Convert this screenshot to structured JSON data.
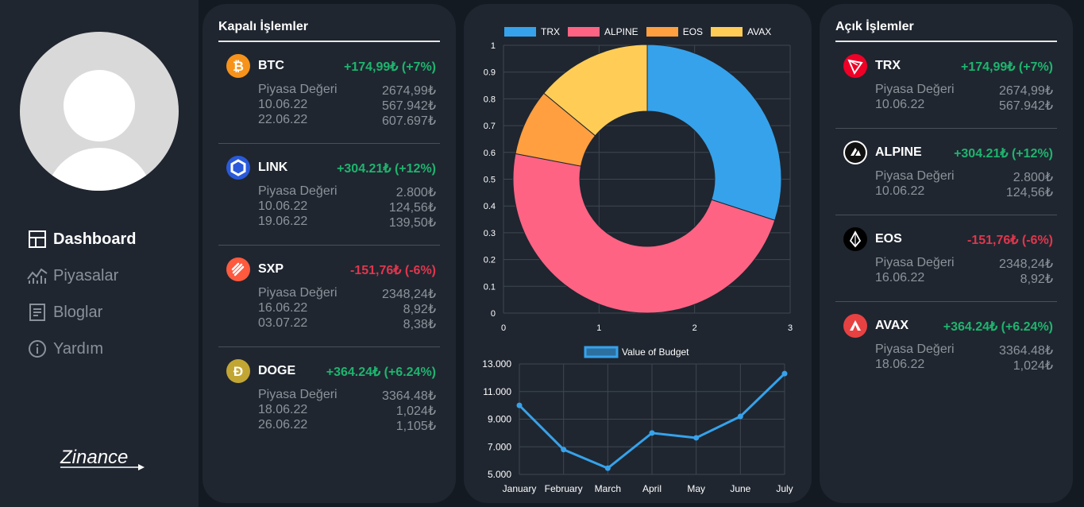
{
  "nav": {
    "items": [
      {
        "label": "Dashboard",
        "active": true
      },
      {
        "label": "Piyasalar",
        "active": false
      },
      {
        "label": "Bloglar",
        "active": false
      },
      {
        "label": "Yardım",
        "active": false
      }
    ],
    "logo_text": "Zinance"
  },
  "closed": {
    "title": "Kapalı İşlemler",
    "items": [
      {
        "symbol": "BTC",
        "change": "+174,99₺ (+7%)",
        "trend": "up",
        "icon": "bitcoin-icon",
        "color": "#f7931a",
        "rows": [
          [
            "Piyasa Değeri",
            "2674,99₺"
          ],
          [
            "10.06.22",
            "567.942₺"
          ],
          [
            "22.06.22",
            "607.697₺"
          ]
        ]
      },
      {
        "symbol": "LINK",
        "change": "+304.21₺ (+12%)",
        "trend": "up",
        "icon": "chainlink-icon",
        "color": "#2a5ada",
        "rows": [
          [
            "Piyasa Değeri",
            "2.800₺"
          ],
          [
            "10.06.22",
            "124,56₺"
          ],
          [
            "19.06.22",
            "139,50₺"
          ]
        ]
      },
      {
        "symbol": "SXP",
        "change": "-151,76₺ (-6%)",
        "trend": "down",
        "icon": "swipe-icon",
        "color": "#fd5a3e",
        "rows": [
          [
            "Piyasa Değeri",
            "2348,24₺"
          ],
          [
            "16.06.22",
            "8,92₺"
          ],
          [
            "03.07.22",
            "8,38₺"
          ]
        ]
      },
      {
        "symbol": "DOGE",
        "change": "+364.24₺ (+6.24%)",
        "trend": "up",
        "icon": "dogecoin-icon",
        "color": "#c2a633",
        "rows": [
          [
            "Piyasa Değeri",
            "3364.48₺"
          ],
          [
            "18.06.22",
            "1,024₺"
          ],
          [
            "26.06.22",
            "1,105₺"
          ]
        ]
      }
    ]
  },
  "open": {
    "title": "Açık İşlemler",
    "items": [
      {
        "symbol": "TRX",
        "change": "+174,99₺ (+7%)",
        "trend": "up",
        "icon": "tron-icon",
        "color": "#ef0027",
        "rows": [
          [
            "Piyasa Değeri",
            "2674,99₺"
          ],
          [
            "10.06.22",
            "567.942₺"
          ]
        ]
      },
      {
        "symbol": "ALPINE",
        "change": "+304.21₺ (+12%)",
        "trend": "up",
        "icon": "alpine-icon",
        "color": "#ffffff",
        "rows": [
          [
            "Piyasa Değeri",
            "2.800₺"
          ],
          [
            "10.06.22",
            "124,56₺"
          ]
        ]
      },
      {
        "symbol": "EOS",
        "change": "-151,76₺ (-6%)",
        "trend": "down",
        "icon": "eos-icon",
        "color": "#000000",
        "rows": [
          [
            "Piyasa Değeri",
            "2348,24₺"
          ],
          [
            "16.06.22",
            "8,92₺"
          ]
        ]
      },
      {
        "symbol": "AVAX",
        "change": "+364.24₺ (+6.24%)",
        "trend": "up",
        "icon": "avalanche-icon",
        "color": "#e84142",
        "rows": [
          [
            "Piyasa Değeri",
            "3364.48₺"
          ],
          [
            "18.06.22",
            "1,024₺"
          ]
        ]
      }
    ]
  },
  "chart_data": [
    {
      "type": "pie",
      "variant": "doughnut",
      "labels": [
        "TRX",
        "ALPINE",
        "EOS",
        "AVAX"
      ],
      "values": [
        30,
        48,
        8,
        14
      ],
      "colors": [
        "#36a2eb",
        "#ff6384",
        "#ff9f40",
        "#ffcd56"
      ],
      "legend_position": "top",
      "x_ticks": [
        "0",
        "1",
        "2",
        "3"
      ],
      "y_ticks": [
        "0",
        "0.1",
        "0.2",
        "0.3",
        "0.4",
        "0.5",
        "0.6",
        "0.7",
        "0.8",
        "0.9",
        "1"
      ],
      "xlim": [
        0,
        3
      ],
      "ylim": [
        0,
        1
      ],
      "grid": true
    },
    {
      "type": "line",
      "x": [
        "January",
        "February",
        "March",
        "April",
        "May",
        "June",
        "July"
      ],
      "series": [
        {
          "name": "Value of Budget",
          "values": [
            10000,
            6800,
            5450,
            8000,
            7650,
            9200,
            12300
          ],
          "color": "#36a2eb"
        }
      ],
      "y_ticks": [
        "5.000",
        "7.000",
        "9.000",
        "11.000",
        "13.000"
      ],
      "ylim": [
        5000,
        13000
      ],
      "grid": true,
      "legend_position": "top"
    }
  ]
}
